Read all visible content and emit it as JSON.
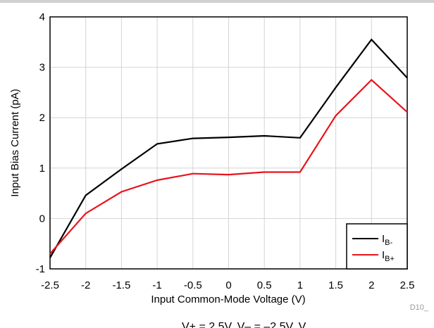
{
  "chart_data": {
    "type": "line",
    "xlabel": "Input Common-Mode Voltage (V)",
    "ylabel": "Input Bias Current (pA)",
    "xlim": [
      -2.5,
      2.5
    ],
    "ylim": [
      -1,
      4
    ],
    "xticks": [
      "-2.5",
      "-2",
      "-1.5",
      "-1",
      "-0.5",
      "0",
      "0.5",
      "1",
      "1.5",
      "2",
      "2.5"
    ],
    "yticks": [
      "-1",
      "0",
      "1",
      "2",
      "3",
      "4"
    ],
    "grid": true,
    "legend_position": "bottom-right",
    "series": [
      {
        "name_main": "I",
        "name_sub": "B-",
        "color": "#000000",
        "x": [
          -2.5,
          -2,
          -1.5,
          -1,
          -0.5,
          0,
          0.5,
          1,
          1.5,
          2,
          2.5
        ],
        "y": [
          -0.78,
          0.46,
          0.98,
          1.48,
          1.59,
          1.61,
          1.64,
          1.6,
          2.6,
          3.55,
          2.79
        ]
      },
      {
        "name_main": "I",
        "name_sub": "B+",
        "color": "#e8141c",
        "x": [
          -2.5,
          -2,
          -1.5,
          -1,
          -0.5,
          0,
          0.5,
          1,
          1.5,
          2,
          2.5
        ],
        "y": [
          -0.7,
          0.1,
          0.53,
          0.76,
          0.89,
          0.87,
          0.92,
          0.92,
          2.04,
          2.75,
          2.11
        ]
      }
    ]
  },
  "figure_id": "D10_",
  "caption": "V+ = 2.5V, V– = –2.5V, V"
}
